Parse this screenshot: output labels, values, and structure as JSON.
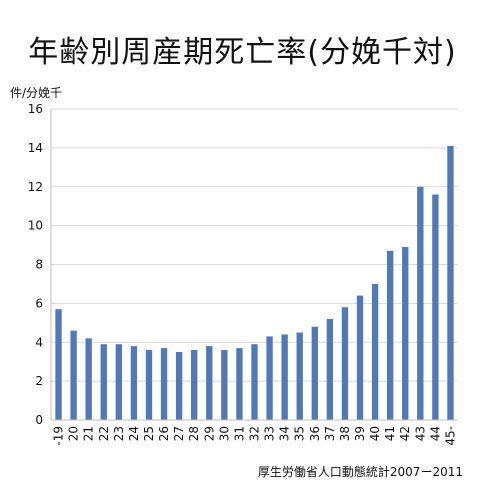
{
  "title": "年齢別周産期死亡率(分娩千対)",
  "source": "厚生労働省人口動態統計2007ー2011",
  "colors": {
    "bar": "#4F79B8",
    "grid": "#D9D9D9",
    "axis": "#BFBFBF"
  },
  "chart_data": {
    "type": "bar",
    "title": "年齢別周産期死亡率(分娩千対)",
    "ylabel": "件/分娩千",
    "xlabel": "",
    "ylim": [
      0,
      16
    ],
    "yticks": [
      0,
      2,
      4,
      6,
      8,
      10,
      12,
      14,
      16
    ],
    "grid": true,
    "categories": [
      "-19",
      "20",
      "21",
      "22",
      "23",
      "24",
      "25",
      "26",
      "27",
      "28",
      "29",
      "30",
      "31",
      "32",
      "33",
      "34",
      "35",
      "36",
      "37",
      "38",
      "39",
      "40",
      "41",
      "42",
      "43",
      "44",
      "45-"
    ],
    "values": [
      5.7,
      4.6,
      4.2,
      3.9,
      3.9,
      3.8,
      3.6,
      3.7,
      3.5,
      3.6,
      3.8,
      3.6,
      3.7,
      3.9,
      4.3,
      4.4,
      4.5,
      4.8,
      5.2,
      5.8,
      6.4,
      7.0,
      8.7,
      8.9,
      12.0,
      11.6,
      14.1
    ]
  }
}
